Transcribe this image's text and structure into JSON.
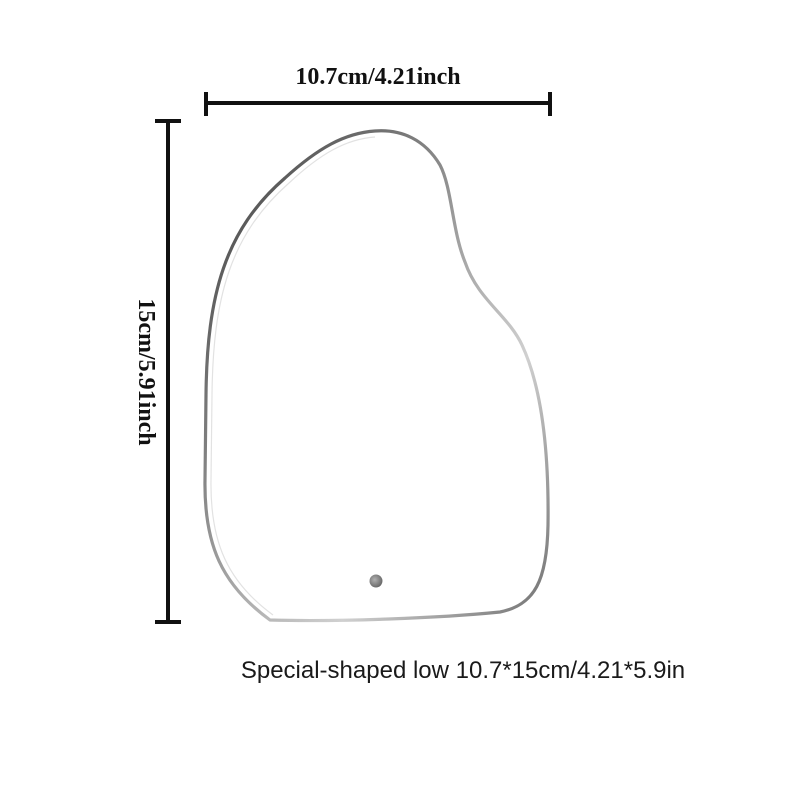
{
  "dimensions": {
    "width_label": "10.7cm/4.21inch",
    "height_label": "15cm/5.91inch"
  },
  "caption": "Special-shaped low 10.7*15cm/4.21*5.9in",
  "colors": {
    "background": "#ffffff",
    "dimension_line": "#111111",
    "outline_dark": "#4a4a4a",
    "outline_light": "#c8c8c8",
    "hole": "#8a8a8a"
  }
}
